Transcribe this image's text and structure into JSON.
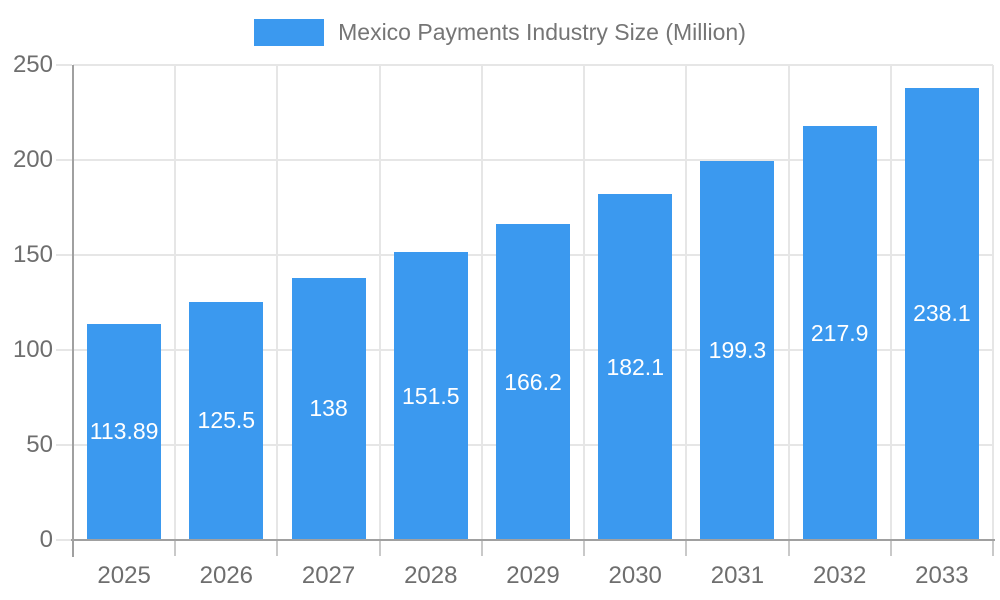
{
  "chart_data": {
    "type": "bar",
    "title": "Mexico Payments Industry Size (Million)",
    "categories": [
      "2025",
      "2026",
      "2027",
      "2028",
      "2029",
      "2030",
      "2031",
      "2032",
      "2033"
    ],
    "values": [
      113.89,
      125.5,
      138,
      151.5,
      166.2,
      182.1,
      199.3,
      217.9,
      238.1
    ],
    "value_labels": [
      "113.89",
      "125.5",
      "138",
      "151.5",
      "166.2",
      "182.1",
      "199.3",
      "217.9",
      "238.1"
    ],
    "xlabel": "",
    "ylabel": "",
    "ylim": [
      0,
      250
    ],
    "yticks": [
      0,
      50,
      100,
      150,
      200,
      250
    ],
    "grid": true,
    "legend_position": "top",
    "colors": {
      "bar": "#3B99EF",
      "value_label": "#FFFFFF",
      "legend_text": "#757575",
      "axis_label": "#6E6E6E",
      "gridline": "#E6E6E6",
      "axis_line": "#A0A0A0",
      "tick_mark": "#C9C9C9",
      "background": "#FFFFFF"
    }
  }
}
